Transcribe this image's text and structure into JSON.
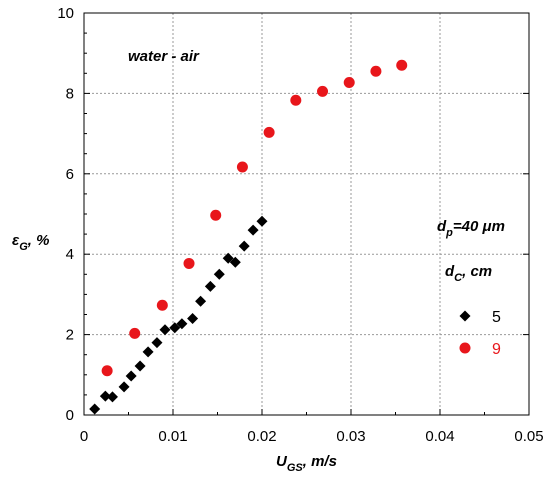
{
  "chart_data": {
    "type": "scatter",
    "xlim": [
      0,
      0.05
    ],
    "ylim": [
      0,
      10
    ],
    "x_ticks": [
      "0",
      "0.01",
      "0.02",
      "0.03",
      "0.04",
      "0.05"
    ],
    "y_ticks": [
      "0",
      "2",
      "4",
      "6",
      "8",
      "10"
    ],
    "grid": true,
    "xlabel": {
      "main": "U",
      "sub": "GS",
      "rest": ", m/s"
    },
    "ylabel": {
      "main": "ε",
      "sub": "G",
      "rest": ", %"
    },
    "annotations": {
      "system": "water - air",
      "particle": {
        "main": "d",
        "sub": "p",
        "rest": "=40 μm"
      },
      "legend_title": {
        "main": "d",
        "sub": "C",
        "rest": ", cm"
      }
    },
    "legend_placement": "right",
    "series": [
      {
        "name": "5",
        "marker": "diamond",
        "color": "#000000",
        "points": [
          [
            0.0012,
            0.15
          ],
          [
            0.0024,
            0.47
          ],
          [
            0.0032,
            0.45
          ],
          [
            0.0045,
            0.7
          ],
          [
            0.0053,
            0.97
          ],
          [
            0.0063,
            1.22
          ],
          [
            0.0072,
            1.57
          ],
          [
            0.0082,
            1.8
          ],
          [
            0.0091,
            2.12
          ],
          [
            0.0102,
            2.17
          ],
          [
            0.011,
            2.27
          ],
          [
            0.0122,
            2.4
          ],
          [
            0.0131,
            2.83
          ],
          [
            0.0142,
            3.2
          ],
          [
            0.0152,
            3.5
          ],
          [
            0.0162,
            3.9
          ],
          [
            0.017,
            3.8
          ],
          [
            0.018,
            4.2
          ],
          [
            0.019,
            4.6
          ],
          [
            0.02,
            4.82
          ]
        ]
      },
      {
        "name": "9",
        "marker": "circle",
        "color": "#e8161b",
        "points": [
          [
            0.0026,
            1.1
          ],
          [
            0.0057,
            2.03
          ],
          [
            0.0088,
            2.73
          ],
          [
            0.0118,
            3.77
          ],
          [
            0.0148,
            4.97
          ],
          [
            0.0178,
            6.17
          ],
          [
            0.0208,
            7.03
          ],
          [
            0.0238,
            7.83
          ],
          [
            0.0268,
            8.05
          ],
          [
            0.0298,
            8.27
          ],
          [
            0.0328,
            8.55
          ],
          [
            0.0357,
            8.7
          ]
        ]
      }
    ]
  }
}
